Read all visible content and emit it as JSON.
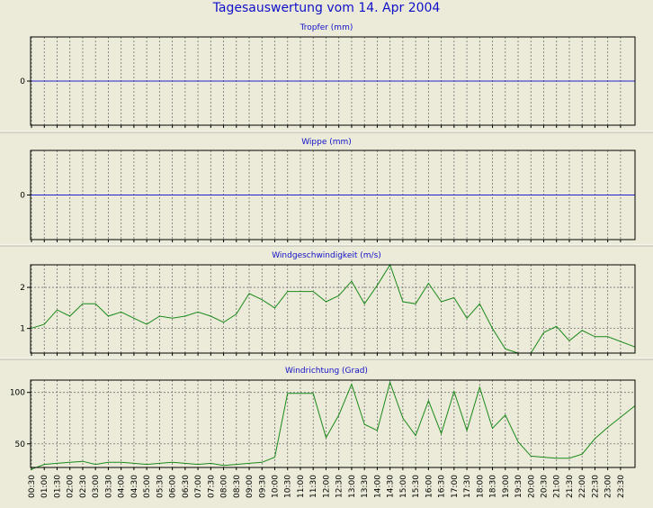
{
  "page": {
    "title": "Tagesauswertung vom 14. Apr 2004"
  },
  "colors": {
    "background": "#ecebd9",
    "title": "#1010c8",
    "panel_title": "#1010c8",
    "zero_line": "#2020d0",
    "series_line": "#1a8a1a",
    "grid": "#707070",
    "frame": "#000000",
    "separator": "#ffffff"
  },
  "time_labels": [
    "00:30",
    "01:00",
    "01:30",
    "02:00",
    "02:30",
    "03:00",
    "03:30",
    "04:00",
    "04:30",
    "05:00",
    "05:30",
    "06:00",
    "06:30",
    "07:00",
    "07:30",
    "08:00",
    "08:30",
    "09:00",
    "09:30",
    "10:00",
    "10:30",
    "11:00",
    "11:30",
    "12:00",
    "12:30",
    "13:00",
    "13:30",
    "14:00",
    "14:30",
    "15:00",
    "15:30",
    "16:00",
    "16:30",
    "17:00",
    "17:30",
    "18:00",
    "18:30",
    "19:00",
    "19:30",
    "20:00",
    "20:30",
    "21:00",
    "21:30",
    "22:00",
    "22:30",
    "23:00",
    "23:30"
  ],
  "chart_data": [
    {
      "type": "line",
      "title": "Tropfer (mm)",
      "grid": true,
      "y_ticks": [
        "0"
      ],
      "series": [
        {
          "values": [
            0,
            0,
            0,
            0,
            0,
            0,
            0,
            0,
            0,
            0,
            0,
            0,
            0,
            0,
            0,
            0,
            0,
            0,
            0,
            0,
            0,
            0,
            0,
            0,
            0,
            0,
            0,
            0,
            0,
            0,
            0,
            0,
            0,
            0,
            0,
            0,
            0,
            0,
            0,
            0,
            0,
            0,
            0,
            0,
            0,
            0,
            0
          ]
        }
      ]
    },
    {
      "type": "line",
      "title": "Wippe (mm)",
      "grid": true,
      "y_ticks": [
        "0"
      ],
      "series": [
        {
          "values": [
            0,
            0,
            0,
            0,
            0,
            0,
            0,
            0,
            0,
            0,
            0,
            0,
            0,
            0,
            0,
            0,
            0,
            0,
            0,
            0,
            0,
            0,
            0,
            0,
            0,
            0,
            0,
            0,
            0,
            0,
            0,
            0,
            0,
            0,
            0,
            0,
            0,
            0,
            0,
            0,
            0,
            0,
            0,
            0,
            0,
            0,
            0
          ]
        }
      ]
    },
    {
      "type": "line",
      "title": "Windgeschwindigkeit (m/s)",
      "grid": true,
      "y_ticks": [
        "1",
        "2"
      ],
      "series": [
        {
          "values": [
            1.0,
            1.1,
            1.45,
            1.3,
            1.6,
            1.6,
            1.3,
            1.4,
            1.25,
            1.1,
            1.3,
            1.25,
            1.3,
            1.4,
            1.3,
            1.15,
            1.35,
            1.85,
            1.7,
            1.5,
            1.9,
            1.9,
            1.9,
            1.65,
            1.8,
            2.15,
            1.6,
            2.05,
            2.55,
            1.65,
            1.6,
            2.1,
            1.65,
            1.75,
            1.25,
            1.6,
            1.0,
            0.5,
            0.4,
            0.4,
            0.9,
            1.05,
            0.7,
            0.95,
            0.8,
            0.8,
            0.55
          ]
        }
      ]
    },
    {
      "type": "line",
      "title": "Windrichtung (Grad)",
      "grid": true,
      "y_ticks": [
        "50",
        "100"
      ],
      "series": [
        {
          "values": [
            25,
            30,
            31,
            32,
            33,
            30,
            32,
            32,
            31,
            30,
            31,
            32,
            31,
            30,
            31,
            29,
            30,
            31,
            32,
            37,
            99,
            99,
            99,
            56,
            78,
            108,
            69,
            63,
            110,
            75,
            58,
            92,
            60,
            101,
            63,
            105,
            65,
            78,
            52,
            38,
            37,
            36,
            36,
            40,
            55,
            66,
            87
          ]
        }
      ]
    }
  ]
}
